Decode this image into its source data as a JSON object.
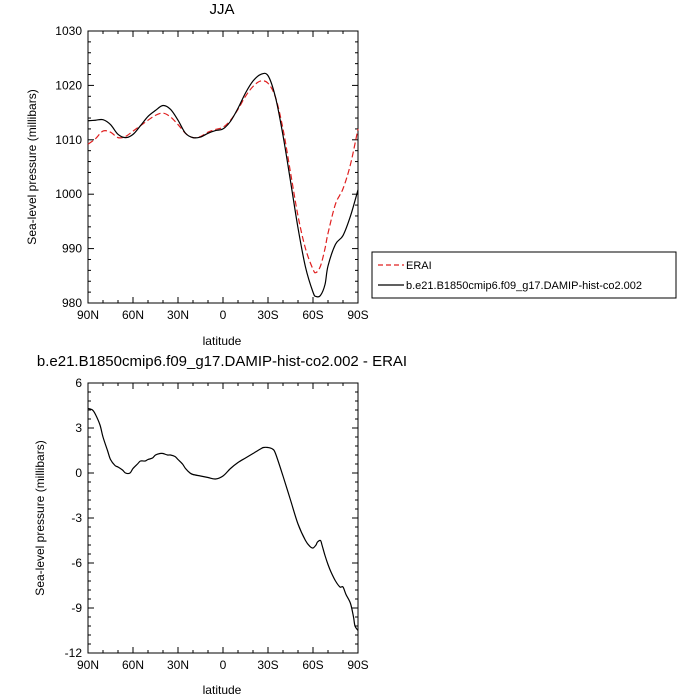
{
  "chart_data": [
    {
      "type": "line",
      "title": "JJA",
      "xlabel": "latitude",
      "ylabel": "Sea-level pressure (millibars)",
      "xlim": [
        90,
        -90
      ],
      "ylim": [
        980,
        1030
      ],
      "x_ticks": [
        90,
        60,
        30,
        0,
        -30,
        -60,
        -90
      ],
      "x_tick_labels": [
        "90N",
        "60N",
        "30N",
        "0",
        "30S",
        "60S",
        "90S"
      ],
      "y_ticks": [
        980,
        990,
        1000,
        1010,
        1020,
        1030
      ],
      "y_tick_labels": [
        "980",
        "990",
        "1000",
        "1010",
        "1020",
        "1030"
      ],
      "legend": "right",
      "grid": false,
      "series": [
        {
          "name": "ERAI",
          "color": "#e02020",
          "dash": "dashed",
          "x": [
            90,
            85,
            80,
            75,
            70,
            65,
            60,
            55,
            50,
            45,
            40,
            35,
            30,
            25,
            20,
            15,
            10,
            5,
            0,
            -5,
            -10,
            -15,
            -20,
            -25,
            -30,
            -35,
            -40,
            -45,
            -50,
            -55,
            -60,
            -62,
            -65,
            -68,
            -70,
            -75,
            -80,
            -85,
            -90
          ],
          "y": [
            1009.2,
            1010.2,
            1011.6,
            1011.4,
            1010.4,
            1010.6,
            1011.6,
            1012.6,
            1013.6,
            1014.5,
            1014.9,
            1014.2,
            1012.8,
            1011.2,
            1010.4,
            1010.6,
            1011.4,
            1011.9,
            1012.3,
            1013.6,
            1015.6,
            1018.0,
            1019.8,
            1020.8,
            1020.4,
            1017.8,
            1012.0,
            1004.0,
            996.0,
            990.0,
            986.2,
            985.6,
            986.8,
            990.0,
            992.8,
            998.2,
            1001.0,
            1005.5,
            1012.0
          ]
        },
        {
          "name": "b.e21.B1850cmip6.f09_g17.DAMIP-hist-co2.002",
          "color": "#000000",
          "dash": "solid",
          "x": [
            90,
            85,
            80,
            75,
            70,
            65,
            60,
            55,
            50,
            45,
            40,
            35,
            30,
            25,
            20,
            15,
            10,
            5,
            0,
            -5,
            -10,
            -15,
            -20,
            -25,
            -30,
            -35,
            -40,
            -45,
            -50,
            -55,
            -60,
            -62,
            -65,
            -68,
            -70,
            -75,
            -80,
            -85,
            -90
          ],
          "y": [
            1013.5,
            1013.6,
            1013.7,
            1012.8,
            1011.0,
            1010.4,
            1011.0,
            1012.6,
            1014.3,
            1015.4,
            1016.3,
            1015.6,
            1013.6,
            1011.2,
            1010.4,
            1010.5,
            1011.2,
            1011.7,
            1012.0,
            1013.4,
            1015.8,
            1018.6,
            1020.8,
            1022.0,
            1021.8,
            1017.8,
            1010.8,
            1002.4,
            993.8,
            986.6,
            982.0,
            981.2,
            981.4,
            983.4,
            986.8,
            990.8,
            992.4,
            996.0,
            1000.8
          ]
        }
      ]
    },
    {
      "type": "line",
      "title": "b.e21.B1850cmip6.f09_g17.DAMIP-hist-co2.002 - ERAI",
      "xlabel": "latitude",
      "ylabel": "Sea-level pressure (millibars)",
      "xlim": [
        90,
        -90
      ],
      "ylim": [
        -12,
        6
      ],
      "x_ticks": [
        90,
        60,
        30,
        0,
        -30,
        -60,
        -90
      ],
      "x_tick_labels": [
        "90N",
        "60N",
        "30N",
        "0",
        "30S",
        "60S",
        "90S"
      ],
      "y_ticks": [
        6,
        3,
        0,
        -3,
        -6,
        -9,
        -12
      ],
      "y_tick_labels": [
        "6",
        "3",
        "0",
        "-3",
        "-6",
        "-9",
        "-12"
      ],
      "grid": false,
      "series": [
        {
          "color": "#000000",
          "x": [
            90,
            87,
            85,
            82,
            80,
            77,
            75,
            72,
            70,
            67,
            65,
            62,
            60,
            57,
            55,
            52,
            50,
            47,
            45,
            42,
            40,
            37,
            35,
            32,
            30,
            27,
            25,
            22,
            20,
            15,
            10,
            5,
            0,
            -5,
            -10,
            -15,
            -20,
            -25,
            -27,
            -30,
            -33,
            -35,
            -40,
            -45,
            -50,
            -55,
            -58,
            -60,
            -62,
            -63,
            -65,
            -66,
            -68,
            -70,
            -72,
            -75,
            -78,
            -80,
            -82,
            -85,
            -87,
            -88,
            -90
          ],
          "y": [
            4.3,
            4.2,
            3.9,
            3.2,
            2.4,
            1.5,
            0.9,
            0.5,
            0.4,
            0.2,
            0.0,
            0.0,
            0.3,
            0.6,
            0.8,
            0.8,
            0.9,
            1.0,
            1.2,
            1.3,
            1.3,
            1.2,
            1.2,
            1.1,
            0.9,
            0.6,
            0.3,
            0.0,
            -0.1,
            -0.2,
            -0.3,
            -0.4,
            -0.2,
            0.3,
            0.7,
            1.0,
            1.3,
            1.6,
            1.7,
            1.7,
            1.6,
            1.3,
            -0.2,
            -1.8,
            -3.4,
            -4.5,
            -4.9,
            -5.0,
            -4.8,
            -4.6,
            -4.5,
            -4.8,
            -5.5,
            -6.1,
            -6.6,
            -7.2,
            -7.6,
            -7.6,
            -8.1,
            -8.7,
            -9.6,
            -10.2,
            -10.5
          ]
        }
      ]
    }
  ]
}
